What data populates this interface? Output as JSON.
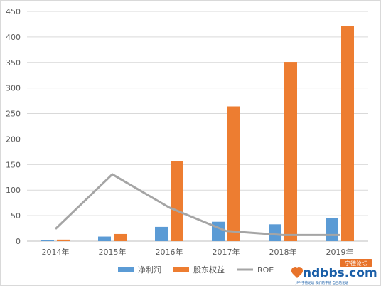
{
  "chart_data": {
    "type": "bar",
    "categories": [
      "2014年",
      "2015年",
      "2016年",
      "2017年",
      "2018年",
      "2019年"
    ],
    "series": [
      {
        "name": "净利润",
        "kind": "bar",
        "color": "#5b9bd5",
        "values": [
          2,
          9,
          28,
          38,
          33,
          45
        ]
      },
      {
        "name": "股东权益",
        "kind": "bar",
        "color": "#ed7d31",
        "values": [
          3,
          14,
          157,
          264,
          351,
          421
        ]
      },
      {
        "name": "ROE",
        "kind": "line",
        "color": "#a5a5a5",
        "values": [
          24,
          131,
          66,
          20,
          12,
          12
        ]
      }
    ],
    "yticks": [
      "0",
      "50",
      "100",
      "150",
      "200",
      "250",
      "300",
      "350",
      "400",
      "450"
    ],
    "ylim": [
      0,
      450
    ],
    "grid": true,
    "legend_position": "bottom"
  },
  "watermark": {
    "logo_text": "ndbbs.com",
    "badge_text": "宁德论坛",
    "tagline": "JPP 宁德论坛 我们的宁德 自己的论坛"
  }
}
